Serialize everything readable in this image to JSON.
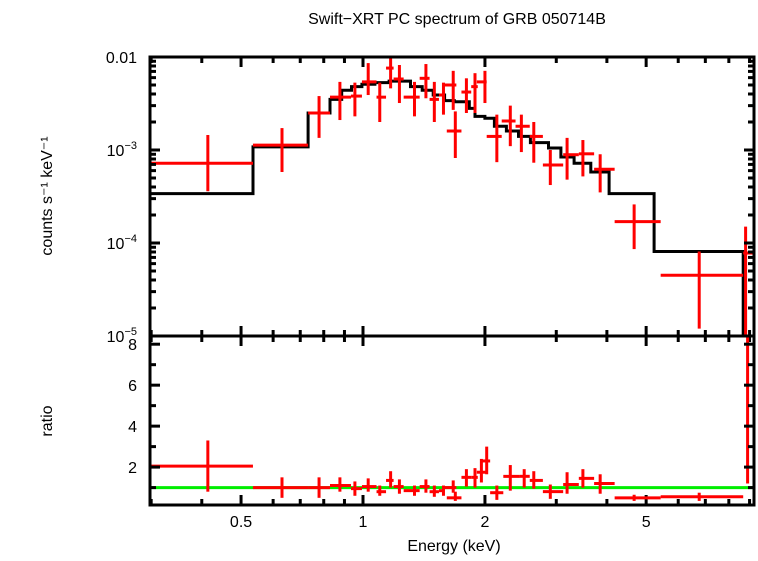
{
  "chart_data": [
    {
      "panel": "spectrum",
      "type": "scatter",
      "title": "Swift−XRT PC spectrum of GRB 050714B",
      "xlabel": "Energy (keV)",
      "ylabel": "counts s⁻¹ keV⁻¹",
      "xscale": "log",
      "yscale": "log",
      "xlim": [
        0.298,
        9.23
      ],
      "ylim": [
        1e-05,
        0.01
      ],
      "xticks": [
        {
          "value": 0.5,
          "label": "0.5"
        },
        {
          "value": 1,
          "label": "1"
        },
        {
          "value": 2,
          "label": "2"
        },
        {
          "value": 5,
          "label": "5"
        }
      ],
      "yticks": [
        {
          "value": 0.01,
          "label": "0.01",
          "base": "",
          "exp": ""
        },
        {
          "value": 0.001,
          "label": "10",
          "base": "10",
          "exp": "−3"
        },
        {
          "value": 0.0001,
          "label": "10",
          "base": "10",
          "exp": "−4"
        },
        {
          "value": 1e-05,
          "label": "10",
          "base": "10",
          "exp": "−5"
        }
      ],
      "series": [
        {
          "name": "data",
          "color": "#ff0000",
          "points": [
            {
              "xlo": 0.298,
              "xhi": 0.535,
              "x": 0.414,
              "y": 0.00072,
              "ylo": 0.00036,
              "yhi": 0.00145
            },
            {
              "xlo": 0.535,
              "xhi": 0.732,
              "x": 0.631,
              "y": 0.00113,
              "ylo": 0.00058,
              "yhi": 0.00172
            },
            {
              "xlo": 0.732,
              "xhi": 0.829,
              "x": 0.779,
              "y": 0.0025,
              "ylo": 0.00135,
              "yhi": 0.0038
            },
            {
              "xlo": 0.829,
              "xhi": 0.934,
              "x": 0.877,
              "y": 0.0037,
              "ylo": 0.0021,
              "yhi": 0.0054
            },
            {
              "xlo": 0.934,
              "xhi": 0.994,
              "x": 0.955,
              "y": 0.0038,
              "ylo": 0.0023,
              "yhi": 0.0053
            },
            {
              "xlo": 0.994,
              "xhi": 1.08,
              "x": 1.03,
              "y": 0.0054,
              "ylo": 0.0039,
              "yhi": 0.0086
            },
            {
              "xlo": 1.08,
              "xhi": 1.14,
              "x": 1.1,
              "y": 0.0037,
              "ylo": 0.002,
              "yhi": 0.0053
            },
            {
              "xlo": 1.14,
              "xhi": 1.19,
              "x": 1.17,
              "y": 0.0076,
              "ylo": 0.0046,
              "yhi": 0.01
            },
            {
              "xlo": 1.19,
              "xhi": 1.26,
              "x": 1.23,
              "y": 0.0058,
              "ylo": 0.0032,
              "yhi": 0.0082
            },
            {
              "xlo": 1.26,
              "xhi": 1.38,
              "x": 1.34,
              "y": 0.0037,
              "ylo": 0.0023,
              "yhi": 0.0054
            },
            {
              "xlo": 1.38,
              "xhi": 1.46,
              "x": 1.43,
              "y": 0.0059,
              "ylo": 0.0036,
              "yhi": 0.0084
            },
            {
              "xlo": 1.46,
              "xhi": 1.54,
              "x": 1.5,
              "y": 0.0035,
              "ylo": 0.002,
              "yhi": 0.0054
            },
            {
              "xlo": 1.54,
              "xhi": 1.59,
              "x": 1.58,
              "y": 0.0039,
              "ylo": 0.0024,
              "yhi": 0.0053
            },
            {
              "xlo": 1.59,
              "xhi": 1.7,
              "x": 1.67,
              "y": 0.005,
              "ylo": 0.0027,
              "yhi": 0.0071
            },
            {
              "xlo": 1.61,
              "xhi": 1.75,
              "x": 1.69,
              "y": 0.0016,
              "ylo": 0.00082,
              "yhi": 0.0026
            },
            {
              "xlo": 1.75,
              "xhi": 1.85,
              "x": 1.8,
              "y": 0.0042,
              "ylo": 0.0025,
              "yhi": 0.0059
            },
            {
              "xlo": 1.85,
              "xhi": 1.92,
              "x": 1.89,
              "y": 0.0048,
              "ylo": 0.0025,
              "yhi": 0.0067
            },
            {
              "xlo": 1.91,
              "xhi": 2.02,
              "x": 2.0,
              "y": 0.0054,
              "ylo": 0.0032,
              "yhi": 0.0071
            },
            {
              "xlo": 2.02,
              "xhi": 2.2,
              "x": 2.14,
              "y": 0.0014,
              "ylo": 0.00074,
              "yhi": 0.0024
            },
            {
              "xlo": 2.2,
              "xhi": 2.38,
              "x": 2.31,
              "y": 0.00205,
              "ylo": 0.0011,
              "yhi": 0.003
            },
            {
              "xlo": 2.38,
              "xhi": 2.58,
              "x": 2.46,
              "y": 0.0018,
              "ylo": 0.00095,
              "yhi": 0.0024
            },
            {
              "xlo": 2.58,
              "xhi": 2.78,
              "x": 2.64,
              "y": 0.0014,
              "ylo": 0.00073,
              "yhi": 0.002
            },
            {
              "xlo": 2.78,
              "xhi": 3.12,
              "x": 2.9,
              "y": 0.00069,
              "ylo": 0.00042,
              "yhi": 0.001
            },
            {
              "xlo": 3.12,
              "xhi": 3.41,
              "x": 3.19,
              "y": 0.00089,
              "ylo": 0.00048,
              "yhi": 0.00135
            },
            {
              "xlo": 3.41,
              "xhi": 3.72,
              "x": 3.49,
              "y": 0.00091,
              "ylo": 0.00052,
              "yhi": 0.00128
            },
            {
              "xlo": 3.72,
              "xhi": 4.18,
              "x": 3.85,
              "y": 0.00062,
              "ylo": 0.00035,
              "yhi": 0.0009
            },
            {
              "xlo": 4.18,
              "xhi": 5.43,
              "x": 4.67,
              "y": 0.00017,
              "ylo": 8.6e-05,
              "yhi": 0.00026
            },
            {
              "xlo": 5.43,
              "xhi": 8.68,
              "x": 6.76,
              "y": 4.5e-05,
              "ylo": 1.2e-05,
              "yhi": 8.1e-05
            },
            {
              "xlo": 8.68,
              "xhi": 9.23,
              "x": 8.8,
              "y": 7.8e-05,
              "ylo": 1e-05,
              "yhi": 0.00015
            }
          ]
        },
        {
          "name": "model",
          "color": "#000000",
          "style": "step",
          "steps": [
            {
              "xlo": 0.298,
              "xhi": 0.535,
              "y": 0.00034
            },
            {
              "xlo": 0.535,
              "xhi": 0.732,
              "y": 0.00108
            },
            {
              "xlo": 0.732,
              "xhi": 0.829,
              "y": 0.0025
            },
            {
              "xlo": 0.829,
              "xhi": 0.886,
              "y": 0.0035
            },
            {
              "xlo": 0.886,
              "xhi": 0.937,
              "y": 0.0044
            },
            {
              "xlo": 0.937,
              "xhi": 0.994,
              "y": 0.0048
            },
            {
              "xlo": 0.994,
              "xhi": 1.07,
              "y": 0.0051
            },
            {
              "xlo": 1.07,
              "xhi": 1.16,
              "y": 0.0053
            },
            {
              "xlo": 1.16,
              "xhi": 1.31,
              "y": 0.0055
            },
            {
              "xlo": 1.31,
              "xhi": 1.4,
              "y": 0.0048
            },
            {
              "xlo": 1.4,
              "xhi": 1.49,
              "y": 0.0044
            },
            {
              "xlo": 1.49,
              "xhi": 1.59,
              "y": 0.0039
            },
            {
              "xlo": 1.59,
              "xhi": 1.68,
              "y": 0.0034
            },
            {
              "xlo": 1.68,
              "xhi": 1.83,
              "y": 0.0033
            },
            {
              "xlo": 1.83,
              "xhi": 1.89,
              "y": 0.0028
            },
            {
              "xlo": 1.89,
              "xhi": 2.0,
              "y": 0.0023
            },
            {
              "xlo": 2.0,
              "xhi": 2.11,
              "y": 0.0022
            },
            {
              "xlo": 2.11,
              "xhi": 2.26,
              "y": 0.0018
            },
            {
              "xlo": 2.26,
              "xhi": 2.42,
              "y": 0.0016
            },
            {
              "xlo": 2.42,
              "xhi": 2.59,
              "y": 0.0014
            },
            {
              "xlo": 2.59,
              "xhi": 2.87,
              "y": 0.0012
            },
            {
              "xlo": 2.87,
              "xhi": 3.08,
              "y": 0.00105
            },
            {
              "xlo": 3.08,
              "xhi": 3.32,
              "y": 0.00084
            },
            {
              "xlo": 3.32,
              "xhi": 3.65,
              "y": 0.00072
            },
            {
              "xlo": 3.65,
              "xhi": 4.05,
              "y": 0.00058
            },
            {
              "xlo": 4.05,
              "xhi": 5.23,
              "y": 0.00034
            },
            {
              "xlo": 5.23,
              "xhi": 8.68,
              "y": 8.1e-05
            },
            {
              "xlo": 8.68,
              "xhi": 9.23,
              "y": 1e-05
            }
          ]
        }
      ],
      "grid": false
    },
    {
      "panel": "ratio",
      "type": "scatter",
      "xlabel": "Energy (keV)",
      "ylabel": "ratio",
      "xscale": "log",
      "yscale": "linear",
      "xlim": [
        0.298,
        9.23
      ],
      "ylim": [
        0.15,
        8.4
      ],
      "yticks": [
        {
          "value": 2,
          "label": "2"
        },
        {
          "value": 4,
          "label": "4"
        },
        {
          "value": 6,
          "label": "6"
        },
        {
          "value": 8,
          "label": "8"
        }
      ],
      "reference_line": {
        "y": 1,
        "color": "#00ee00"
      },
      "series": [
        {
          "name": "ratio",
          "color": "#ff0000",
          "points": [
            {
              "xlo": 0.298,
              "xhi": 0.535,
              "x": 0.414,
              "y": 2.05,
              "ylo": 0.8,
              "yhi": 3.3
            },
            {
              "xlo": 0.535,
              "xhi": 0.732,
              "x": 0.631,
              "y": 1.0,
              "ylo": 0.5,
              "yhi": 1.5
            },
            {
              "xlo": 0.732,
              "xhi": 0.829,
              "x": 0.779,
              "y": 1.0,
              "ylo": 0.5,
              "yhi": 1.5
            },
            {
              "xlo": 0.829,
              "xhi": 0.934,
              "x": 0.877,
              "y": 1.1,
              "ylo": 0.8,
              "yhi": 1.5
            },
            {
              "xlo": 0.934,
              "xhi": 0.994,
              "x": 0.955,
              "y": 0.95,
              "ylo": 0.6,
              "yhi": 1.3
            },
            {
              "xlo": 0.994,
              "xhi": 1.08,
              "x": 1.03,
              "y": 1.05,
              "ylo": 0.8,
              "yhi": 1.45
            },
            {
              "xlo": 1.08,
              "xhi": 1.14,
              "x": 1.1,
              "y": 0.8,
              "ylo": 0.6,
              "yhi": 1.1
            },
            {
              "xlo": 1.14,
              "xhi": 1.19,
              "x": 1.17,
              "y": 1.35,
              "ylo": 1.0,
              "yhi": 1.8
            },
            {
              "xlo": 1.19,
              "xhi": 1.26,
              "x": 1.23,
              "y": 1.05,
              "ylo": 0.7,
              "yhi": 1.4
            },
            {
              "xlo": 1.26,
              "xhi": 1.38,
              "x": 1.34,
              "y": 0.85,
              "ylo": 0.6,
              "yhi": 1.1
            },
            {
              "xlo": 1.38,
              "xhi": 1.46,
              "x": 1.43,
              "y": 1.05,
              "ylo": 0.75,
              "yhi": 1.4
            },
            {
              "xlo": 1.46,
              "xhi": 1.54,
              "x": 1.5,
              "y": 0.8,
              "ylo": 0.55,
              "yhi": 1.1
            },
            {
              "xlo": 1.54,
              "xhi": 1.59,
              "x": 1.58,
              "y": 0.85,
              "ylo": 0.6,
              "yhi": 1.1
            },
            {
              "xlo": 1.59,
              "xhi": 1.7,
              "x": 1.67,
              "y": 1.0,
              "ylo": 0.75,
              "yhi": 1.35
            },
            {
              "xlo": 1.61,
              "xhi": 1.75,
              "x": 1.69,
              "y": 0.5,
              "ylo": 0.35,
              "yhi": 0.8
            },
            {
              "xlo": 1.75,
              "xhi": 1.85,
              "x": 1.8,
              "y": 1.5,
              "ylo": 1.05,
              "yhi": 1.9
            },
            {
              "xlo": 1.85,
              "xhi": 1.92,
              "x": 1.89,
              "y": 1.5,
              "ylo": 1.0,
              "yhi": 1.95
            },
            {
              "xlo": 1.91,
              "xhi": 2.02,
              "x": 1.96,
              "y": 1.75,
              "ylo": 1.25,
              "yhi": 2.4
            },
            {
              "xlo": 1.96,
              "xhi": 2.06,
              "x": 2.02,
              "y": 2.3,
              "ylo": 1.65,
              "yhi": 3.0
            },
            {
              "xlo": 2.06,
              "xhi": 2.22,
              "x": 2.14,
              "y": 0.75,
              "ylo": 0.4,
              "yhi": 1.1
            },
            {
              "xlo": 2.22,
              "xhi": 2.44,
              "x": 2.31,
              "y": 1.55,
              "ylo": 0.85,
              "yhi": 2.1
            },
            {
              "xlo": 2.44,
              "xhi": 2.58,
              "x": 2.5,
              "y": 1.55,
              "ylo": 1.0,
              "yhi": 1.9
            },
            {
              "xlo": 2.58,
              "xhi": 2.78,
              "x": 2.64,
              "y": 1.35,
              "ylo": 0.95,
              "yhi": 1.8
            },
            {
              "xlo": 2.78,
              "xhi": 3.12,
              "x": 2.9,
              "y": 0.8,
              "ylo": 0.45,
              "yhi": 1.15
            },
            {
              "xlo": 3.12,
              "xhi": 3.41,
              "x": 3.19,
              "y": 1.15,
              "ylo": 0.7,
              "yhi": 1.75
            },
            {
              "xlo": 3.41,
              "xhi": 3.72,
              "x": 3.49,
              "y": 1.45,
              "ylo": 1.0,
              "yhi": 1.9
            },
            {
              "xlo": 3.72,
              "xhi": 4.18,
              "x": 3.85,
              "y": 1.2,
              "ylo": 0.7,
              "yhi": 1.65
            },
            {
              "xlo": 4.18,
              "xhi": 5.43,
              "x": 4.67,
              "y": 0.5,
              "ylo": 0.35,
              "yhi": 0.65
            },
            {
              "xlo": 5.43,
              "xhi": 8.68,
              "x": 6.76,
              "y": 0.55,
              "ylo": 0.35,
              "yhi": 0.75
            },
            {
              "xlo": 8.68,
              "xhi": 9.23,
              "x": 8.9,
              "y": 8.4,
              "ylo": 1.2,
              "yhi": 8.5
            }
          ]
        }
      ],
      "grid": false
    }
  ]
}
